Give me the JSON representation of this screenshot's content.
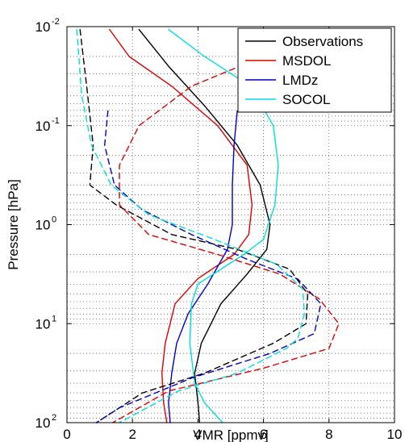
{
  "chart_data": {
    "type": "line",
    "title": "",
    "xlabel": "VMR [ppmv]",
    "ylabel": "Pressure [hPa]",
    "xlim": [
      0,
      10
    ],
    "ylim": [
      0.01,
      100
    ],
    "yscale": "log",
    "yreversed": true,
    "grid": "dotted-major-and-minor",
    "x_ticks": [
      "0",
      "2",
      "4",
      "6",
      "8",
      "10"
    ],
    "y_ticks": [
      {
        "base": "10",
        "exp": "-2",
        "value": 0.01
      },
      {
        "base": "10",
        "exp": "-1",
        "value": 0.1
      },
      {
        "base": "10",
        "exp": "0",
        "value": 1
      },
      {
        "base": "10",
        "exp": "1",
        "value": 10
      },
      {
        "base": "10",
        "exp": "2",
        "value": 100
      }
    ],
    "legend_position": "top-right",
    "series": [
      {
        "name": "Observations",
        "color": "#000000",
        "dash": "solid",
        "points": [
          [
            2.2,
            0.0107
          ],
          [
            3.1,
            0.0251
          ],
          [
            4.2,
            0.063
          ],
          [
            5.2,
            0.158
          ],
          [
            5.9,
            0.398
          ],
          [
            6.2,
            1.0
          ],
          [
            6.1,
            1.78
          ],
          [
            5.5,
            3.16
          ],
          [
            4.7,
            6.3
          ],
          [
            4.1,
            15.8
          ],
          [
            3.9,
            31.6
          ],
          [
            4.0,
            63
          ],
          [
            4.05,
            100
          ]
        ]
      },
      {
        "name": "MSDOL",
        "color": "#dd0000",
        "dash": "solid",
        "points": [
          [
            1.3,
            0.0107
          ],
          [
            1.9,
            0.02
          ],
          [
            3.2,
            0.04
          ],
          [
            4.6,
            0.1
          ],
          [
            5.5,
            0.251
          ],
          [
            5.65,
            0.631
          ],
          [
            5.55,
            1.26
          ],
          [
            5.1,
            2.0
          ],
          [
            4.0,
            3.5
          ],
          [
            3.3,
            6.3
          ],
          [
            3.0,
            15.8
          ],
          [
            2.9,
            31.6
          ],
          [
            2.95,
            63
          ],
          [
            3.05,
            100
          ]
        ]
      },
      {
        "name": "LMDz",
        "color": "#0000cc",
        "dash": "solid",
        "points": [
          [
            5.2,
            0.071
          ],
          [
            5.1,
            0.158
          ],
          [
            5.05,
            0.398
          ],
          [
            5.05,
            1.0
          ],
          [
            4.9,
            1.78
          ],
          [
            4.3,
            3.98
          ],
          [
            3.7,
            7.94
          ],
          [
            3.35,
            15.8
          ],
          [
            3.2,
            31.6
          ],
          [
            3.1,
            63
          ],
          [
            3.15,
            100
          ]
        ]
      },
      {
        "name": "SOCOL",
        "color": "#00dddd",
        "dash": "solid",
        "points": [
          [
            3.1,
            0.0107
          ],
          [
            4.2,
            0.02
          ],
          [
            5.6,
            0.04
          ],
          [
            6.3,
            0.1
          ],
          [
            6.45,
            0.251
          ],
          [
            6.35,
            0.631
          ],
          [
            6.0,
            1.41
          ],
          [
            5.4,
            2.0
          ],
          [
            4.0,
            3.98
          ],
          [
            3.8,
            6.3
          ],
          [
            3.75,
            15.8
          ],
          [
            3.9,
            39.8
          ],
          [
            4.2,
            63
          ],
          [
            4.75,
            100
          ]
        ]
      },
      {
        "name": "Observations (dashed)",
        "color": "#000000",
        "dash": "dashed",
        "points": [
          [
            0.4,
            0.0107
          ],
          [
            0.6,
            0.0398
          ],
          [
            0.8,
            0.158
          ],
          [
            0.7,
            0.398
          ],
          [
            1.5,
            0.631
          ],
          [
            3.2,
            1.26
          ],
          [
            5.2,
            1.78
          ],
          [
            6.8,
            2.82
          ],
          [
            7.35,
            5.01
          ],
          [
            7.3,
            10
          ],
          [
            6.3,
            15.8
          ],
          [
            4.2,
            31.6
          ],
          [
            2.3,
            50.1
          ],
          [
            0.9,
            100
          ]
        ]
      },
      {
        "name": "MSDOL (dashed)",
        "color": "#dd0000",
        "dash": "dashed",
        "points": [
          [
            7.5,
            0.0107
          ],
          [
            6.0,
            0.02
          ],
          [
            3.8,
            0.04
          ],
          [
            2.2,
            0.1
          ],
          [
            1.6,
            0.251
          ],
          [
            1.6,
            0.631
          ],
          [
            2.5,
            1.26
          ],
          [
            4.6,
            2.0
          ],
          [
            6.5,
            3.16
          ],
          [
            7.7,
            5.62
          ],
          [
            8.3,
            10
          ],
          [
            8.0,
            17.8
          ],
          [
            6.0,
            28.2
          ],
          [
            3.1,
            47.9
          ],
          [
            1.4,
            100
          ]
        ]
      },
      {
        "name": "LMDz (dashed)",
        "color": "#0000cc",
        "dash": "dashed",
        "points": [
          [
            1.25,
            0.071
          ],
          [
            1.15,
            0.158
          ],
          [
            1.45,
            0.398
          ],
          [
            2.3,
            0.708
          ],
          [
            3.8,
            1.26
          ],
          [
            5.5,
            2.24
          ],
          [
            7.05,
            3.55
          ],
          [
            7.75,
            6.31
          ],
          [
            7.55,
            12.6
          ],
          [
            6.2,
            20.0
          ],
          [
            3.8,
            35.5
          ],
          [
            1.6,
            70.8
          ],
          [
            0.9,
            100
          ]
        ]
      },
      {
        "name": "SOCOL (dashed)",
        "color": "#00dddd",
        "dash": "dashed",
        "points": [
          [
            0.3,
            0.0107
          ],
          [
            0.45,
            0.05
          ],
          [
            0.75,
            0.158
          ],
          [
            1.35,
            0.398
          ],
          [
            2.5,
            0.794
          ],
          [
            4.5,
            1.41
          ],
          [
            6.4,
            2.51
          ],
          [
            7.2,
            4.47
          ],
          [
            7.25,
            7.94
          ],
          [
            7.05,
            14.1
          ],
          [
            6.7,
            17.8
          ],
          [
            5.2,
            31.6
          ],
          [
            3.4,
            47.9
          ],
          [
            1.6,
            100
          ]
        ]
      }
    ]
  }
}
